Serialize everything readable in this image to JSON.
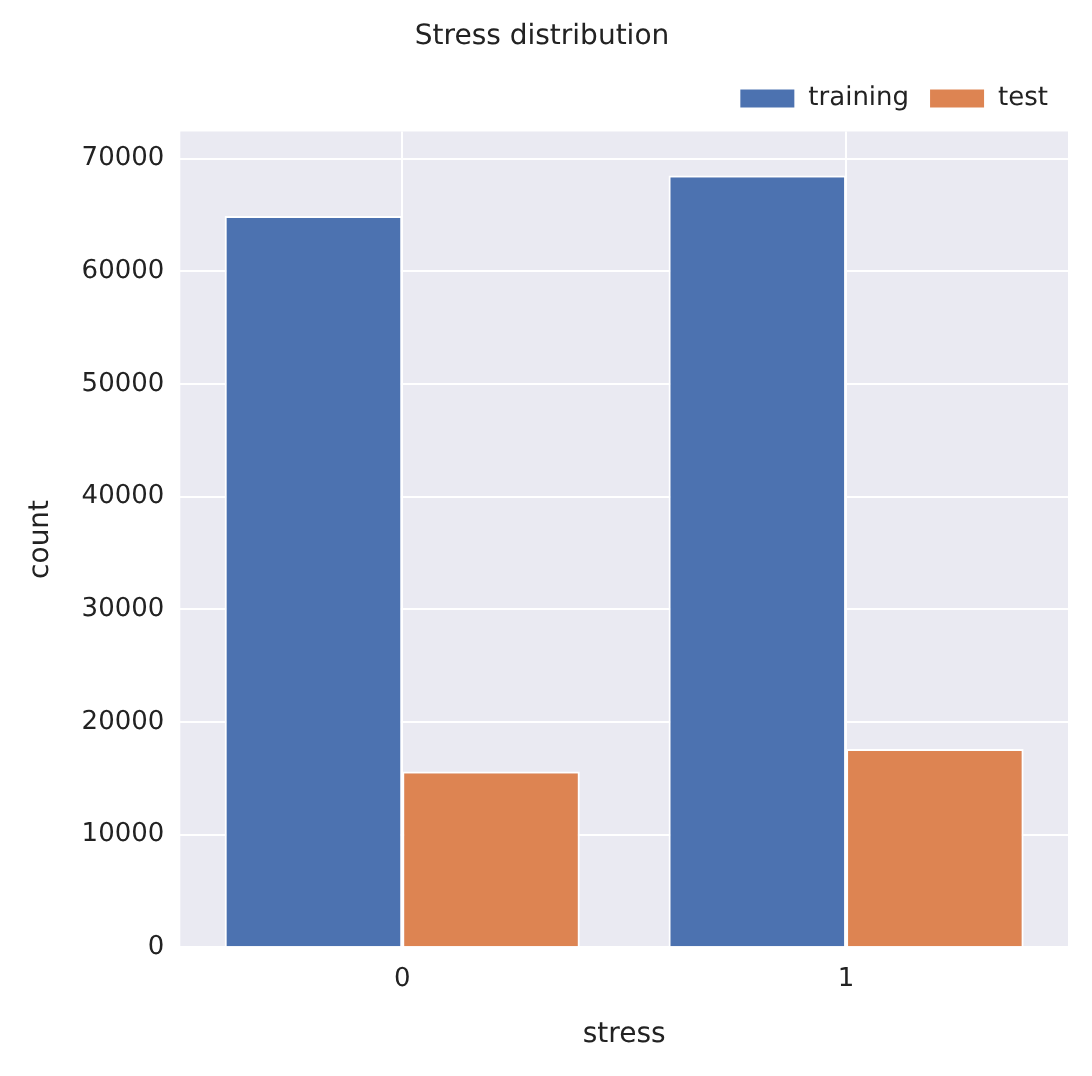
{
  "chart_data": {
    "type": "bar",
    "title": "Stress distribution",
    "xlabel": "stress",
    "ylabel": "count",
    "categories": [
      "0",
      "1"
    ],
    "series": [
      {
        "name": "training",
        "color": "#4c72b0",
        "values": [
          64900,
          68500
        ]
      },
      {
        "name": "test",
        "color": "#dd8452",
        "values": [
          15600,
          17600
        ]
      }
    ],
    "ylim": [
      0,
      72400
    ],
    "yticks": [
      0,
      10000,
      20000,
      30000,
      40000,
      50000,
      60000,
      70000
    ],
    "grid": true,
    "legend": "top right"
  }
}
